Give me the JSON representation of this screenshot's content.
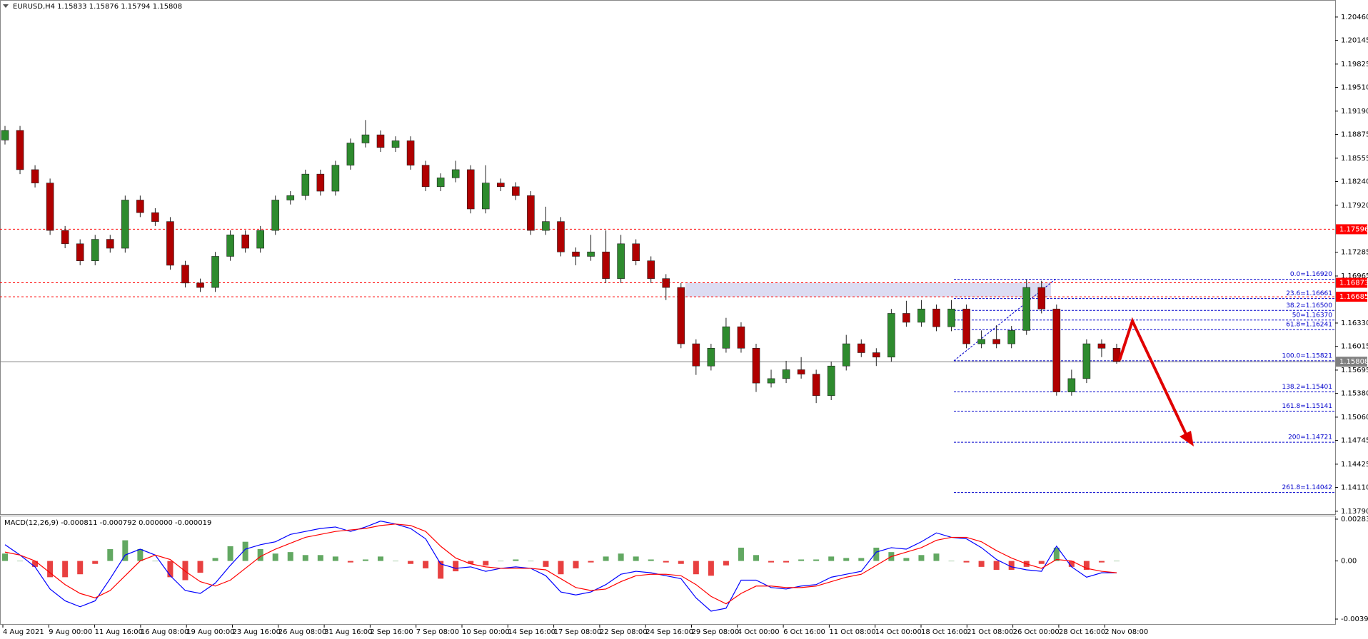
{
  "chart_data": [
    {
      "type": "candlestick",
      "title": "EURUSD,H4  1.15833 1.15876 1.15794 1.15808",
      "ylim": [
        1.1375,
        1.2069
      ],
      "yticks": [
        {
          "value": 1.2046,
          "label": "1.20460"
        },
        {
          "value": 1.20145,
          "label": "1.20145"
        },
        {
          "value": 1.19825,
          "label": "1.19825"
        },
        {
          "value": 1.1951,
          "label": "1.19510"
        },
        {
          "value": 1.1919,
          "label": "1.19190"
        },
        {
          "value": 1.18875,
          "label": "1.18875"
        },
        {
          "value": 1.18555,
          "label": "1.18555"
        },
        {
          "value": 1.1824,
          "label": "1.18240"
        },
        {
          "value": 1.1792,
          "label": "1.17920"
        },
        {
          "value": 1.17285,
          "label": "1.17285"
        },
        {
          "value": 1.16965,
          "label": "1.16965"
        },
        {
          "value": 1.1633,
          "label": "1.16330"
        },
        {
          "value": 1.16015,
          "label": "1.16015"
        },
        {
          "value": 1.15695,
          "label": "1.15695"
        },
        {
          "value": 1.1538,
          "label": "1.15380"
        },
        {
          "value": 1.1506,
          "label": "1.15060"
        },
        {
          "value": 1.14745,
          "label": "1.14745"
        },
        {
          "value": 1.14425,
          "label": "1.14425"
        },
        {
          "value": 1.1411,
          "label": "1.14110"
        },
        {
          "value": 1.1379,
          "label": "1.13790"
        }
      ],
      "time_labels": [
        "4 Aug 2021",
        "9 Aug 00:00",
        "11 Aug 16:00",
        "16 Aug 08:00",
        "19 Aug 00:00",
        "23 Aug 16:00",
        "26 Aug 08:00",
        "31 Aug 16:00",
        "2 Sep 16:00",
        "7 Sep 08:00",
        "10 Sep 00:00",
        "14 Sep 16:00",
        "17 Sep 08:00",
        "22 Sep 08:00",
        "24 Sep 16:00",
        "29 Sep 08:00",
        "4 Oct 00:00",
        "6 Oct 16:00",
        "11 Oct 08:00",
        "14 Oct 00:00",
        "18 Oct 16:00",
        "21 Oct 08:00",
        "26 Oct 00:00",
        "28 Oct 16:00",
        "2 Nov 08:00"
      ],
      "bull_color": "#2e8b2e",
      "bear_color": "#b00000",
      "open": [
        1.188,
        1.1893,
        1.184,
        1.1822,
        1.1758,
        1.174,
        1.1717,
        1.1746,
        1.1734,
        1.1799,
        1.1782,
        1.177,
        1.1711,
        1.1687,
        1.1681,
        1.1723,
        1.1752,
        1.1734,
        1.1758,
        1.1799,
        1.1805,
        1.1834,
        1.1811,
        1.1846,
        1.1876,
        1.1887,
        1.187,
        1.1879,
        1.1846,
        1.1817,
        1.1829,
        1.184,
        1.1787,
        1.1822,
        1.1817,
        1.1805,
        1.1758,
        1.177,
        1.1729,
        1.1723,
        1.1729,
        1.1693,
        1.174,
        1.1717,
        1.1693,
        1.1681,
        1.1605,
        1.1575,
        1.1599,
        1.1628,
        1.1599,
        1.1552,
        1.1558,
        1.157,
        1.1564,
        1.1535,
        1.1575,
        1.1605,
        1.1593,
        1.1587,
        1.1646,
        1.1634,
        1.1652,
        1.1628,
        1.1652,
        1.1605,
        1.1611,
        1.1605,
        1.1623,
        1.1681,
        1.1652,
        1.154,
        1.1558,
        1.1605,
        1.1599
      ],
      "high": [
        1.1899,
        1.1899,
        1.1846,
        1.1828,
        1.1764,
        1.1746,
        1.1752,
        1.1752,
        1.1805,
        1.1805,
        1.1788,
        1.1776,
        1.1717,
        1.1693,
        1.1729,
        1.1758,
        1.1758,
        1.1764,
        1.1805,
        1.1811,
        1.184,
        1.184,
        1.1852,
        1.1882,
        1.1907,
        1.1893,
        1.1885,
        1.1885,
        1.1852,
        1.1835,
        1.1852,
        1.1846,
        1.1846,
        1.1828,
        1.1823,
        1.1811,
        1.179,
        1.1776,
        1.1735,
        1.1752,
        1.1758,
        1.1752,
        1.1746,
        1.1723,
        1.1699,
        1.1687,
        1.1611,
        1.1605,
        1.164,
        1.1634,
        1.1605,
        1.157,
        1.1582,
        1.1587,
        1.157,
        1.1581,
        1.1617,
        1.1611,
        1.1599,
        1.1652,
        1.1663,
        1.1664,
        1.1658,
        1.1664,
        1.1658,
        1.1623,
        1.163,
        1.1629,
        1.1692,
        1.169,
        1.1658,
        1.157,
        1.1611,
        1.1611,
        1.1605
      ],
      "low": [
        1.1874,
        1.1834,
        1.1816,
        1.1752,
        1.1734,
        1.1711,
        1.1711,
        1.1728,
        1.1728,
        1.1776,
        1.1764,
        1.1705,
        1.1681,
        1.1675,
        1.1675,
        1.1717,
        1.1728,
        1.1728,
        1.1752,
        1.1793,
        1.1799,
        1.1805,
        1.1805,
        1.184,
        1.187,
        1.1864,
        1.1864,
        1.184,
        1.1811,
        1.1811,
        1.1823,
        1.1781,
        1.1781,
        1.1811,
        1.1799,
        1.1752,
        1.1752,
        1.1723,
        1.1711,
        1.1717,
        1.1687,
        1.1687,
        1.1711,
        1.1687,
        1.1664,
        1.1599,
        1.1563,
        1.1569,
        1.1593,
        1.1593,
        1.154,
        1.1546,
        1.1552,
        1.1558,
        1.1525,
        1.1529,
        1.1569,
        1.1587,
        1.1575,
        1.1581,
        1.1628,
        1.1628,
        1.1622,
        1.1622,
        1.1599,
        1.1599,
        1.1599,
        1.1599,
        1.1617,
        1.1646,
        1.1535,
        1.1535,
        1.1552,
        1.1587,
        1.1578
      ],
      "close": [
        1.1893,
        1.184,
        1.1822,
        1.1758,
        1.174,
        1.1717,
        1.1746,
        1.1734,
        1.1799,
        1.1782,
        1.177,
        1.1711,
        1.1687,
        1.1681,
        1.1723,
        1.1752,
        1.1734,
        1.1758,
        1.1799,
        1.1805,
        1.1834,
        1.1811,
        1.1846,
        1.1876,
        1.1887,
        1.187,
        1.1879,
        1.1846,
        1.1817,
        1.1829,
        1.184,
        1.1787,
        1.1822,
        1.1817,
        1.1805,
        1.1758,
        1.177,
        1.1729,
        1.1723,
        1.1729,
        1.1693,
        1.174,
        1.1717,
        1.1693,
        1.1681,
        1.1605,
        1.1575,
        1.1599,
        1.1628,
        1.1599,
        1.1552,
        1.1558,
        1.157,
        1.1564,
        1.1535,
        1.1575,
        1.1605,
        1.1593,
        1.1587,
        1.1646,
        1.1634,
        1.1652,
        1.1628,
        1.1652,
        1.1605,
        1.1611,
        1.1605,
        1.1623,
        1.1681,
        1.1652,
        1.154,
        1.1558,
        1.1605,
        1.1599,
        1.1581
      ],
      "hlines": [
        {
          "value": 1.17596,
          "color": "#ff0000",
          "dashed": true
        },
        {
          "value": 1.16873,
          "color": "#ff0000",
          "dashed": true
        },
        {
          "value": 1.16685,
          "color": "#ff0000",
          "dashed": true
        },
        {
          "value": 1.15808,
          "color": "#808080",
          "dashed": false
        }
      ],
      "zone": {
        "from": 1.16873,
        "to": 1.16685,
        "color": "#dcdcf2"
      },
      "fib_color": "#0000cc",
      "fib_levels": [
        {
          "label": "0.0=1.16920",
          "value": 1.1692
        },
        {
          "label": "23.6=1.16661",
          "value": 1.16661
        },
        {
          "label": "38.2=1.16500",
          "value": 1.165
        },
        {
          "label": "50=1.16370",
          "value": 1.1637
        },
        {
          "label": "61.8=1.16241",
          "value": 1.16241
        },
        {
          "label": "100.0=1.15821",
          "value": 1.15821
        },
        {
          "label": "138.2=1.15401",
          "value": 1.15401
        },
        {
          "label": "161.8=1.15141",
          "value": 1.15141
        },
        {
          "label": "200=1.14721",
          "value": 1.14721
        },
        {
          "label": "261.8=1.14042",
          "value": 1.14042
        }
      ]
    },
    {
      "type": "macd",
      "title": "MACD(12,26,9) -0.000811 -0.000792 0.000000 -0.000019",
      "ylim": [
        -0.00427,
        0.00307
      ],
      "yticks": [
        0.002832,
        {
          "value": 0,
          "label": "0.00"
        },
        -0.003934
      ],
      "series": [
        {
          "color": "#0000ff",
          "values": [
            0.0011,
            0.0004,
            -0.0004,
            -0.0019,
            -0.0027,
            -0.0031,
            -0.0027,
            -0.0012,
            0.0004,
            0.0008,
            0.0004,
            -0.001,
            -0.002,
            -0.0022,
            -0.0015,
            -0.0003,
            0.0008,
            0.0011,
            0.0013,
            0.0018,
            0.002,
            0.0022,
            0.0023,
            0.002,
            0.0023,
            0.0027,
            0.0025,
            0.0022,
            0.0015,
            -0.0002,
            -0.0005,
            -0.0004,
            -0.0007,
            -0.0005,
            -0.0004,
            -0.0005,
            -0.001,
            -0.0021,
            -0.0023,
            -0.0021,
            -0.0016,
            -0.0009,
            -0.0007,
            -0.0008,
            -0.001,
            -0.0012,
            -0.0025,
            -0.0034,
            -0.0032,
            -0.0013,
            -0.0013,
            -0.0018,
            -0.0019,
            -0.0017,
            -0.0016,
            -0.0011,
            -0.0009,
            -0.0007,
            0.0006,
            0.0009,
            0.0008,
            0.0013,
            0.0019,
            0.0016,
            0.0015,
            0.0009,
            0.0001,
            -0.0004,
            -0.0006,
            -0.0007,
            0.001,
            -0.0004,
            -0.0011,
            -0.0008,
            -0.0008
          ]
        },
        {
          "color": "#ff0000",
          "values": [
            0.0006,
            0.0004,
            0.0,
            -0.0008,
            -0.0016,
            -0.0022,
            -0.0025,
            -0.002,
            -0.001,
            0.0,
            0.0004,
            0.0001,
            -0.0007,
            -0.0014,
            -0.0017,
            -0.0013,
            -0.0005,
            0.0003,
            0.0008,
            0.0012,
            0.0016,
            0.0018,
            0.002,
            0.0021,
            0.0022,
            0.0024,
            0.0025,
            0.0024,
            0.002,
            0.001,
            0.0002,
            -0.0002,
            -0.0004,
            -0.0005,
            -0.0005,
            -0.0005,
            -0.0006,
            -0.0012,
            -0.0018,
            -0.002,
            -0.0019,
            -0.0014,
            -0.001,
            -0.0009,
            -0.0009,
            -0.001,
            -0.0016,
            -0.0024,
            -0.0029,
            -0.0022,
            -0.0017,
            -0.0017,
            -0.0018,
            -0.0018,
            -0.0017,
            -0.0014,
            -0.0011,
            -0.0009,
            -0.0003,
            0.0003,
            0.0006,
            0.0009,
            0.0014,
            0.0016,
            0.0016,
            0.0013,
            0.0007,
            0.0002,
            -0.0002,
            -0.0005,
            0.0001,
            0.0,
            -0.0005,
            -0.0007,
            -0.0008
          ]
        }
      ],
      "histogram": {
        "up_color": "#2e8b2e",
        "down_color": "#e00000",
        "values": [
          0.0005,
          0,
          -0.0004,
          -0.0011,
          -0.0011,
          -0.0009,
          -0.0002,
          0.0008,
          0.0014,
          0.0008,
          0,
          -0.0011,
          -0.0013,
          -0.0008,
          0.0002,
          0.001,
          0.0013,
          0.0008,
          0.0005,
          0.0006,
          0.0004,
          0.0004,
          0.0003,
          -0.0001,
          0.0001,
          0.0003,
          0,
          -0.0002,
          -0.0005,
          -0.0012,
          -0.0007,
          -0.0002,
          -0.0003,
          0,
          0.0001,
          0,
          -0.0004,
          -0.0009,
          -0.0005,
          -0.0001,
          0.0003,
          0.0005,
          0.0003,
          0.0001,
          -0.0001,
          -0.0002,
          -0.0009,
          -0.001,
          -0.0003,
          0.0009,
          0.0004,
          -0.0001,
          -0.0001,
          0.0001,
          0.0001,
          0.0003,
          0.0002,
          0.0002,
          0.0009,
          0.0006,
          0.0002,
          0.0004,
          0.0005,
          0,
          -0.0001,
          -0.0004,
          -0.0006,
          -0.0006,
          -0.0004,
          -0.0002,
          0.0009,
          -0.0004,
          -0.0006,
          -0.0001,
          0
        ]
      }
    }
  ]
}
